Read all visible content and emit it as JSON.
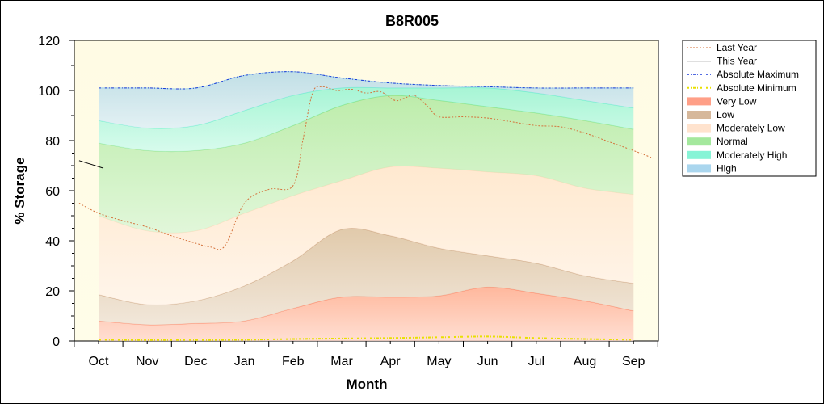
{
  "chart_data": {
    "type": "area",
    "title": "B8R005",
    "xlabel": "Month",
    "ylabel": "% Storage",
    "ylim": [
      0,
      120
    ],
    "yticks": [
      "0",
      "20",
      "40",
      "60",
      "80",
      "100",
      "120"
    ],
    "categories": [
      "Oct",
      "Nov",
      "Dec",
      "Jan",
      "Feb",
      "Mar",
      "Apr",
      "May",
      "Jun",
      "Jul",
      "Aug",
      "Sep"
    ],
    "legend_position": "right",
    "bands": [
      {
        "name": "Very Low",
        "color": "#ff7f5f",
        "lower": [
          0,
          0,
          0,
          0,
          0,
          0,
          0,
          0,
          0,
          0,
          0,
          0
        ],
        "upper": [
          8,
          6.5,
          7,
          8,
          13,
          17.5,
          17.5,
          18,
          21.5,
          19,
          16,
          12
        ]
      },
      {
        "name": "Low",
        "color": "#c8a07a",
        "lower": [
          8,
          6.5,
          7,
          8,
          13,
          17.5,
          17.5,
          18,
          21.5,
          19,
          16,
          12
        ],
        "upper": [
          18.5,
          14.5,
          16,
          22,
          32,
          44.5,
          42,
          37,
          34,
          31,
          26,
          23
        ]
      },
      {
        "name": "Moderately Low",
        "color": "#ffd9bd",
        "lower": [
          18.5,
          14.5,
          16,
          22,
          32,
          44.5,
          42,
          37,
          34,
          31,
          26,
          23
        ],
        "upper": [
          50,
          44,
          44,
          51,
          58,
          64,
          69.5,
          69,
          67.5,
          66,
          61,
          58.5
        ]
      },
      {
        "name": "Normal",
        "color": "#86e07c",
        "lower": [
          50,
          44,
          44,
          51,
          58,
          64,
          69.5,
          69,
          67.5,
          66,
          61,
          58.5
        ],
        "upper": [
          79,
          76,
          76,
          79,
          86,
          94,
          98,
          96,
          93.5,
          91,
          88,
          84.5
        ]
      },
      {
        "name": "Moderately High",
        "color": "#5ff0c8",
        "lower": [
          79,
          76,
          76,
          79,
          86,
          94,
          98,
          96,
          93.5,
          91,
          88,
          84.5
        ],
        "upper": [
          88,
          85,
          86,
          92,
          98,
          101,
          101,
          101,
          101,
          99,
          96,
          93
        ]
      },
      {
        "name": "High",
        "color": "#8ec8e8",
        "lower": [
          88,
          85,
          86,
          92,
          98,
          101,
          101,
          101,
          101,
          99,
          96,
          93
        ],
        "upper": [
          101,
          101,
          101,
          106,
          107.5,
          105,
          103,
          102,
          101.5,
          101,
          101,
          101
        ]
      }
    ],
    "series": [
      {
        "name": "Last Year",
        "color": "#d4713a",
        "dash": "dotted",
        "x": [
          -0.4,
          0,
          0.5,
          1,
          1.5,
          2,
          2.3,
          2.6,
          3,
          3.5,
          4,
          4.2,
          4.4,
          4.6,
          4.9,
          5.2,
          5.5,
          5.8,
          6.1,
          6.3,
          6.5,
          6.8,
          7,
          7.5,
          8,
          8.5,
          9,
          9.5,
          10,
          10.5,
          11,
          11.4
        ],
        "values": [
          55,
          51,
          48,
          45.5,
          42,
          39,
          37.5,
          38,
          55,
          60.5,
          62,
          80,
          99,
          101.5,
          100,
          100.5,
          99,
          99.5,
          96,
          97,
          98,
          93,
          89.5,
          89.5,
          89,
          87.5,
          86,
          85.5,
          83,
          79.5,
          76,
          73
        ]
      },
      {
        "name": "This Year",
        "color": "#000000",
        "dash": "solid",
        "x": [
          -0.4,
          0.1
        ],
        "values": [
          72,
          69
        ]
      },
      {
        "name": "Absolute Maximum",
        "color": "#1a3ad8",
        "dash": "dashdot",
        "x": [
          0,
          1,
          2,
          3,
          4,
          5,
          6,
          7,
          8,
          9,
          10,
          11
        ],
        "values": [
          101,
          101,
          101,
          106,
          107.5,
          105,
          103,
          102,
          101.5,
          101,
          101,
          101
        ]
      },
      {
        "name": "Absolute Minimum",
        "color": "#e8e000",
        "dash": "dashdot",
        "x": [
          0,
          1,
          2,
          3,
          4,
          5,
          6,
          7,
          8,
          9,
          10,
          11
        ],
        "values": [
          0.5,
          0.4,
          0.4,
          0.5,
          0.8,
          1,
          1.2,
          1.5,
          1.8,
          1.2,
          0.8,
          0.5
        ]
      }
    ],
    "legend": [
      "Last Year",
      "This Year",
      "Absolute Maximum",
      "Absolute Minimum",
      "Very Low",
      "Low",
      "Moderately Low",
      "Normal",
      "Moderately High",
      "High"
    ]
  }
}
